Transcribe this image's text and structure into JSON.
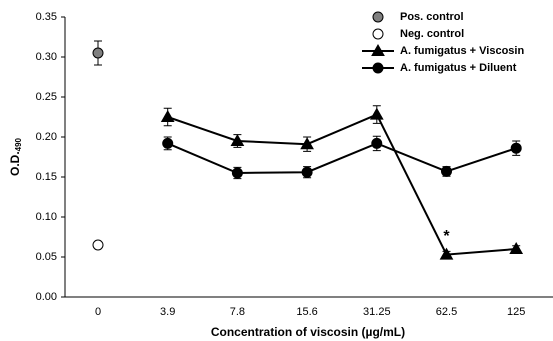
{
  "chart_data": {
    "type": "line",
    "xlabel": "Concentration of viscosin (µg/mL)",
    "ylabel": "O.D.",
    "ylabel_subscript": "490",
    "categories": [
      "0",
      "3.9",
      "7.8",
      "15.6",
      "31.25",
      "62.5",
      "125"
    ],
    "ylim": [
      0,
      0.35
    ],
    "yticks": [
      {
        "value": 0,
        "label": "0.00"
      },
      {
        "value": 0.05,
        "label": "0.05"
      },
      {
        "value": 0.1,
        "label": "0.10"
      },
      {
        "value": 0.15,
        "label": "0.15"
      },
      {
        "value": 0.2,
        "label": "0.20"
      },
      {
        "value": 0.25,
        "label": "0.25"
      },
      {
        "value": 0.3,
        "label": "0.30"
      },
      {
        "value": 0.35,
        "label": "0.35"
      }
    ],
    "legend_position": "upper right",
    "series": [
      {
        "name": "Pos. control",
        "color": "#808080",
        "marker": "circle",
        "line": false,
        "values": [
          0.305,
          null,
          null,
          null,
          null,
          null,
          null
        ],
        "errors": [
          0.015,
          null,
          null,
          null,
          null,
          null,
          null
        ]
      },
      {
        "name": "Neg. control",
        "color": "#ffffff",
        "marker": "circle",
        "line": false,
        "values": [
          0.065,
          null,
          null,
          null,
          null,
          null,
          null
        ],
        "errors": [
          null,
          null,
          null,
          null,
          null,
          null,
          null
        ]
      },
      {
        "name": "A. fumigatus + Viscosin",
        "color": "#000000",
        "marker": "triangle",
        "line": true,
        "values": [
          null,
          0.225,
          0.195,
          0.191,
          0.228,
          0.053,
          0.06
        ],
        "errors": [
          null,
          0.011,
          0.008,
          0.009,
          0.011,
          0.004,
          0.004
        ]
      },
      {
        "name": "A. fumigatus + Diluent",
        "color": "#000000",
        "marker": "circle",
        "line": true,
        "values": [
          null,
          0.192,
          0.155,
          0.156,
          0.192,
          0.157,
          0.186
        ],
        "errors": [
          null,
          0.008,
          0.007,
          0.007,
          0.009,
          0.006,
          0.009
        ]
      }
    ],
    "annotations": [
      {
        "text": "*",
        "x": "62.5",
        "series": "A. fumigatus + Viscosin"
      }
    ]
  }
}
